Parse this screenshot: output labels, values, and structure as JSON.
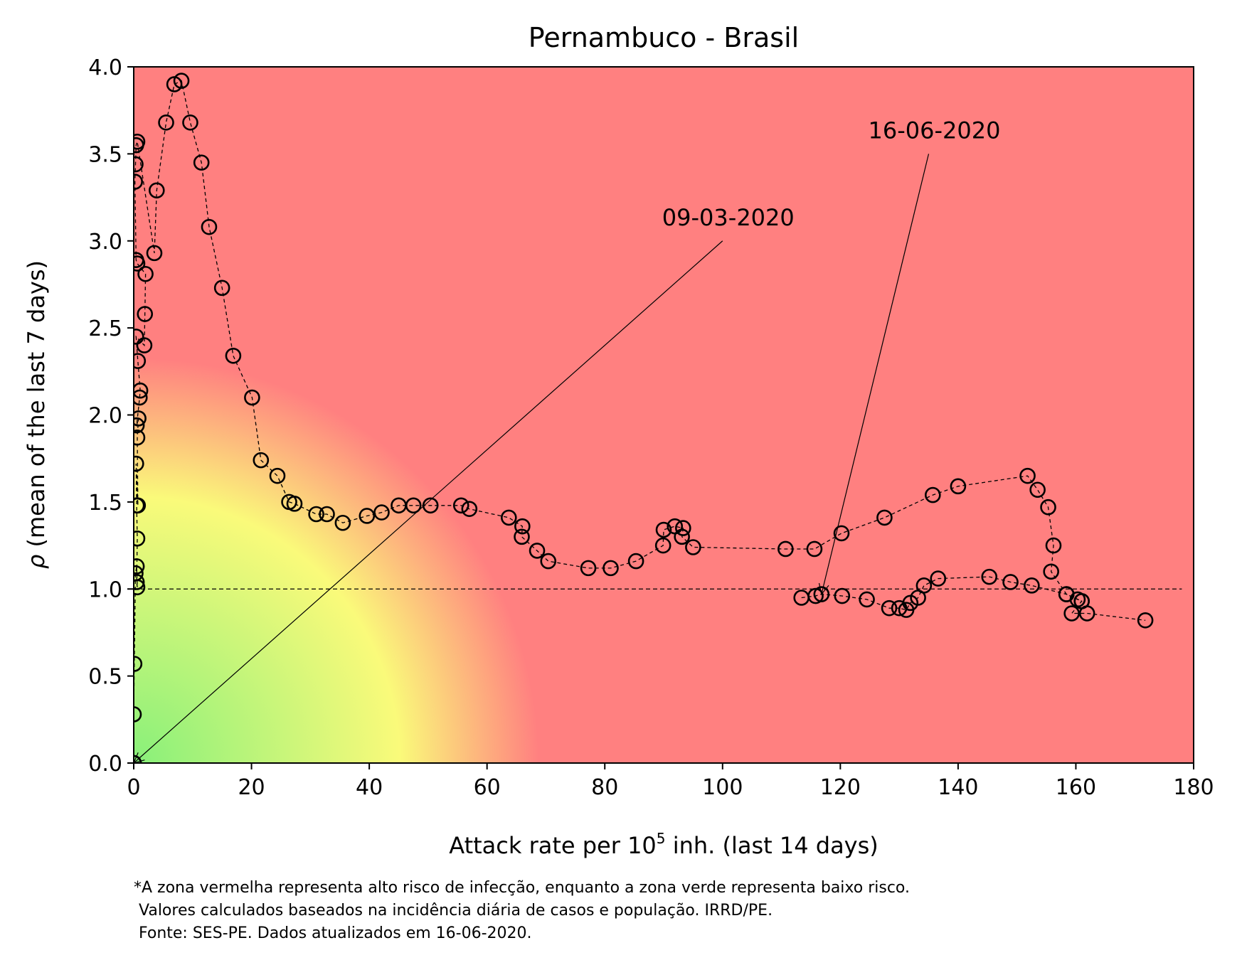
{
  "chart_data": {
    "type": "scatter",
    "title": "Pernambuco - Brasil",
    "xlabel_prefix": "Attack rate per 10",
    "xlabel_sup": "5",
    "xlabel_suffix": " inh. (last 14 days)",
    "ylabel_symbol": "ρ",
    "ylabel_text": " (mean of the last 7 days)",
    "xlim": [
      0,
      180
    ],
    "ylim": [
      0,
      4.0
    ],
    "x_ticks": [
      0,
      20,
      40,
      60,
      80,
      100,
      120,
      140,
      160,
      180
    ],
    "y_ticks": [
      "0.0",
      "0.5",
      "1.0",
      "1.5",
      "2.0",
      "2.5",
      "3.0",
      "3.5",
      "4.0"
    ],
    "reference_line_y": 1.0,
    "background_colors": {
      "high_risk": "#ff8080",
      "mid": "#fafa7a",
      "low_risk": "#88f07a"
    },
    "marker_edge_color": "#000000",
    "line_style": "dashed",
    "annotations": [
      {
        "text": "09-03-2020",
        "point": [
          0,
          0
        ],
        "text_at": [
          100,
          3.0
        ]
      },
      {
        "text": "16-06-2020",
        "point": [
          116.8,
          0.97
        ],
        "text_at": [
          135,
          3.5
        ]
      }
    ],
    "series": [
      {
        "points": [
          [
            0,
            0
          ],
          [
            0,
            0
          ],
          [
            0,
            0
          ],
          [
            0,
            0
          ],
          [
            0,
            0.28
          ],
          [
            0.1,
            0.57
          ],
          [
            0.3,
            1.09
          ],
          [
            0.5,
            1.13
          ],
          [
            0.6,
            1.01
          ],
          [
            0.5,
            1.04
          ],
          [
            0.6,
            1.29
          ],
          [
            0.5,
            1.48
          ],
          [
            0.4,
            1.72
          ],
          [
            0.7,
            1.48
          ],
          [
            0.6,
            1.87
          ],
          [
            0.8,
            1.98
          ],
          [
            0.5,
            1.94
          ],
          [
            1.0,
            2.1
          ],
          [
            1.1,
            2.14
          ],
          [
            0.7,
            2.31
          ],
          [
            0.4,
            2.45
          ],
          [
            1.8,
            2.4
          ],
          [
            1.9,
            2.58
          ],
          [
            2.0,
            2.81
          ],
          [
            0.6,
            2.87
          ],
          [
            0.4,
            2.89
          ],
          [
            0.2,
            3.34
          ],
          [
            0.3,
            3.44
          ],
          [
            0.4,
            3.55
          ],
          [
            0.6,
            3.57
          ],
          [
            3.5,
            2.93
          ],
          [
            3.9,
            3.29
          ],
          [
            5.5,
            3.68
          ],
          [
            6.9,
            3.9
          ],
          [
            8.1,
            3.92
          ],
          [
            9.6,
            3.68
          ],
          [
            11.5,
            3.45
          ],
          [
            12.8,
            3.08
          ],
          [
            15.0,
            2.73
          ],
          [
            16.9,
            2.34
          ],
          [
            20.1,
            2.1
          ],
          [
            21.6,
            1.74
          ],
          [
            24.4,
            1.65
          ],
          [
            26.4,
            1.5
          ],
          [
            27.3,
            1.49
          ],
          [
            31.0,
            1.43
          ],
          [
            32.8,
            1.43
          ],
          [
            35.5,
            1.38
          ],
          [
            39.6,
            1.42
          ],
          [
            42.1,
            1.44
          ],
          [
            45.0,
            1.48
          ],
          [
            47.5,
            1.48
          ],
          [
            50.4,
            1.48
          ],
          [
            55.6,
            1.48
          ],
          [
            57.0,
            1.46
          ],
          [
            63.7,
            1.41
          ],
          [
            66.0,
            1.36
          ],
          [
            65.9,
            1.3
          ],
          [
            68.5,
            1.22
          ],
          [
            70.4,
            1.16
          ],
          [
            77.2,
            1.12
          ],
          [
            81.0,
            1.12
          ],
          [
            85.3,
            1.16
          ],
          [
            89.9,
            1.25
          ],
          [
            90.0,
            1.34
          ],
          [
            91.9,
            1.36
          ],
          [
            93.3,
            1.35
          ],
          [
            93.1,
            1.3
          ],
          [
            95.0,
            1.24
          ],
          [
            110.7,
            1.23
          ],
          [
            115.6,
            1.23
          ],
          [
            120.2,
            1.32
          ],
          [
            127.5,
            1.41
          ],
          [
            135.7,
            1.54
          ],
          [
            140.0,
            1.59
          ],
          [
            151.8,
            1.65
          ],
          [
            153.5,
            1.57
          ],
          [
            155.3,
            1.47
          ],
          [
            156.2,
            1.25
          ],
          [
            155.8,
            1.1
          ],
          [
            158.4,
            0.97
          ],
          [
            160.3,
            0.94
          ],
          [
            161.0,
            0.93
          ],
          [
            159.3,
            0.86
          ],
          [
            161.9,
            0.86
          ],
          [
            171.8,
            0.82
          ]
        ]
      },
      {
        "points": [
          [
            113.4,
            0.95
          ],
          [
            115.8,
            0.96
          ],
          [
            116.8,
            0.97
          ],
          [
            120.3,
            0.96
          ],
          [
            124.5,
            0.94
          ],
          [
            128.3,
            0.89
          ],
          [
            130.0,
            0.89
          ],
          [
            131.2,
            0.88
          ],
          [
            131.9,
            0.92
          ],
          [
            133.2,
            0.95
          ],
          [
            134.2,
            1.02
          ],
          [
            136.6,
            1.06
          ],
          [
            145.3,
            1.07
          ],
          [
            148.9,
            1.04
          ],
          [
            152.5,
            1.02
          ],
          [
            158.4,
            0.97
          ],
          [
            161.0,
            0.93
          ]
        ]
      }
    ]
  },
  "footnote": {
    "line1": "*A zona vermelha representa alto risco de infecção, enquanto a zona verde representa baixo risco.",
    "line2": " Valores calculados baseados na incidência diária de casos e população. IRRD/PE.",
    "line3": " Fonte: SES-PE. Dados atualizados em 16-06-2020."
  }
}
